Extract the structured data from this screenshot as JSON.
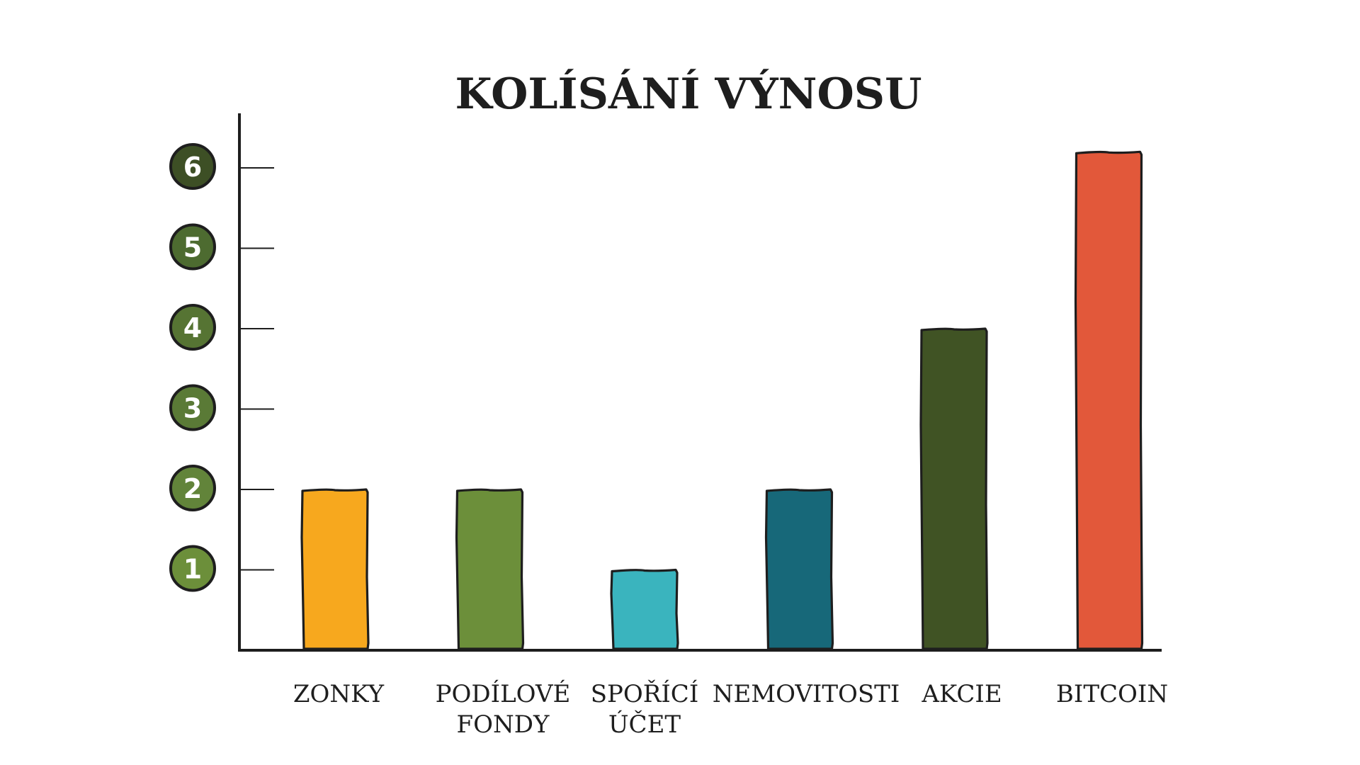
{
  "chart_data": {
    "type": "bar",
    "title": "KOLÍSÁNÍ VÝNOSU",
    "xlabel": "",
    "ylabel": "",
    "ylim": [
      0,
      6.7
    ],
    "yticks": [
      "1",
      "2",
      "3",
      "4",
      "5",
      "6"
    ],
    "categories": [
      [
        "ZONKY"
      ],
      [
        "PODÍLOVÉ",
        "FONDY"
      ],
      [
        "SPOŘÍCÍ",
        "ÚČET"
      ],
      [
        "NEMOVITOSTI"
      ],
      [
        "AKCIE"
      ],
      [
        "BITCOIN"
      ]
    ],
    "values": [
      2,
      2,
      1,
      2,
      4,
      6.2
    ],
    "colors": {
      "bars": [
        "#f7a81e",
        "#6c8f3a",
        "#3ab4be",
        "#176879",
        "#405324",
        "#e2583a"
      ],
      "tick_badge_shades": [
        "#6c8f3a",
        "#62843a",
        "#5a7a36",
        "#567433",
        "#4d6b30",
        "#3d4f25"
      ],
      "outline": "#1e1e1e"
    },
    "grid": false,
    "legend": "none"
  }
}
